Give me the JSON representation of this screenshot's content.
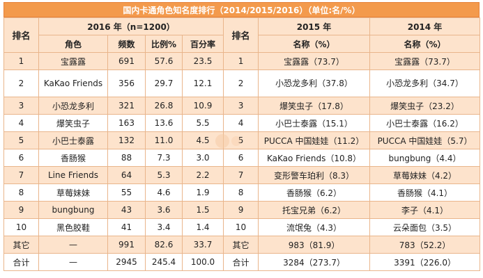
{
  "title": "国内卡通角色知名度排行（2014/2015/2016）（单位:名/%）",
  "headers": {
    "rank": "排名",
    "y2016": "2016 年（n=1200）",
    "y2015": "2015 年",
    "y2014": "2014 年",
    "role": "角色",
    "freq": "频数",
    "ratio": "比例%",
    "pct": "百分率",
    "name_pct_2015": "名称（%）",
    "name_pct_2014": "名称（%）"
  },
  "rows": [
    {
      "r16": "1",
      "role": "宝露露",
      "freq": "691",
      "ratio": "57.6",
      "pct": "23.5",
      "r15": "1",
      "n15": "宝露露（73.7）",
      "n14": "宝露露（73.7）"
    },
    {
      "r16": "2",
      "role": "KaKao Friends",
      "freq": "356",
      "ratio": "29.7",
      "pct": "12.1",
      "r15": "2",
      "n15": "小恐龙多利（37.8）",
      "n14": "小恐龙多利（34.7）"
    },
    {
      "r16": "3",
      "role": "小恐龙多利",
      "freq": "321",
      "ratio": "26.8",
      "pct": "10.9",
      "r15": "3",
      "n15": "爆笑虫子（17.8）",
      "n14": "爆笑虫子（23.2）"
    },
    {
      "r16": "4",
      "role": "爆笑虫子",
      "freq": "163",
      "ratio": "13.6",
      "pct": "5.5",
      "r15": "4",
      "n15": "小巴士泰露（15.1）",
      "n14": "小巴士泰露（16.2）"
    },
    {
      "r16": "5",
      "role": "小巴士泰露",
      "freq": "132",
      "ratio": "11.0",
      "pct": "4.5",
      "r15": "5",
      "n15": "PUCCA 中国娃娃（11.2）",
      "n14": "PUCCA 中国娃娃（5.7）"
    },
    {
      "r16": "6",
      "role": "香肠猴",
      "freq": "88",
      "ratio": "7.3",
      "pct": "3.0",
      "r15": "6",
      "n15": "KaKao Friends（10.8）",
      "n14": "bungbung（4.4）"
    },
    {
      "r16": "7",
      "role": "Line Friends",
      "freq": "64",
      "ratio": "5.3",
      "pct": "2.2",
      "r15": "7",
      "n15": "变形警车珀利（8.3）",
      "n14": "草莓妹妹（4.2）"
    },
    {
      "r16": "8",
      "role": "草莓妹妹",
      "freq": "55",
      "ratio": "4.6",
      "pct": "1.9",
      "r15": "8",
      "n15": "香肠猴（6.2）",
      "n14": "香肠猴（4.1）"
    },
    {
      "r16": "9",
      "role": "bungbung",
      "freq": "43",
      "ratio": "3.6",
      "pct": "1.5",
      "r15": "9",
      "n15": "托宝兄弟（6.2）",
      "n14": "李子（4.1）"
    },
    {
      "r16": "10",
      "role": "黑色胶鞋",
      "freq": "41",
      "ratio": "3.4",
      "pct": "1.4",
      "r15": "10",
      "n15": "流氓兔（4.3）",
      "n14": "云朵面包（3.5）"
    },
    {
      "r16": "其它",
      "role": "—",
      "freq": "991",
      "ratio": "82.6",
      "pct": "33.7",
      "r15": "其它",
      "n15": "983（81.9）",
      "n14": "783（52.2）"
    },
    {
      "r16": "合计",
      "role": "—",
      "freq": "2945",
      "ratio": "245.4",
      "pct": "100.0",
      "r15": "合计",
      "n15": "3284（273.7）",
      "n14": "3391（226.0）"
    }
  ]
}
